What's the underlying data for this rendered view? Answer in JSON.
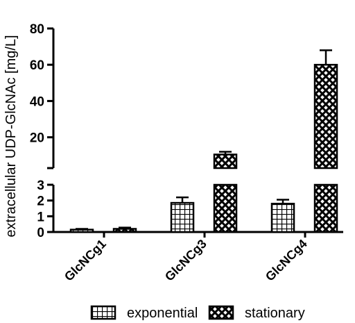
{
  "chart_data": {
    "type": "bar",
    "categories": [
      "GlcNCg1",
      "GlcNCg3",
      "GlcNCg4"
    ],
    "series": [
      {
        "name": "exponential",
        "pattern": "grid",
        "values": [
          0.15,
          1.85,
          1.8
        ],
        "errors": [
          0.05,
          0.35,
          0.25
        ]
      },
      {
        "name": "stationary",
        "pattern": "crosshatch",
        "values": [
          0.2,
          10.5,
          60
        ],
        "errors": [
          0.08,
          1.5,
          8.0
        ]
      }
    ],
    "ylabel": "extracellular UDP-GlcNAc [mg/L]",
    "xlabel": "",
    "title": "",
    "y_axis_broken": true,
    "lower_segment": {
      "ylim": [
        0,
        3
      ],
      "ticks": [
        0,
        1,
        2,
        3
      ]
    },
    "upper_segment": {
      "ylim": [
        3,
        80
      ],
      "ticks": [
        20,
        40,
        60,
        80
      ]
    },
    "legend_position": "bottom",
    "grid": false,
    "colors": {
      "bar_fill": "#ffffff",
      "pattern_stroke": "#000000",
      "axis": "#000000"
    }
  }
}
